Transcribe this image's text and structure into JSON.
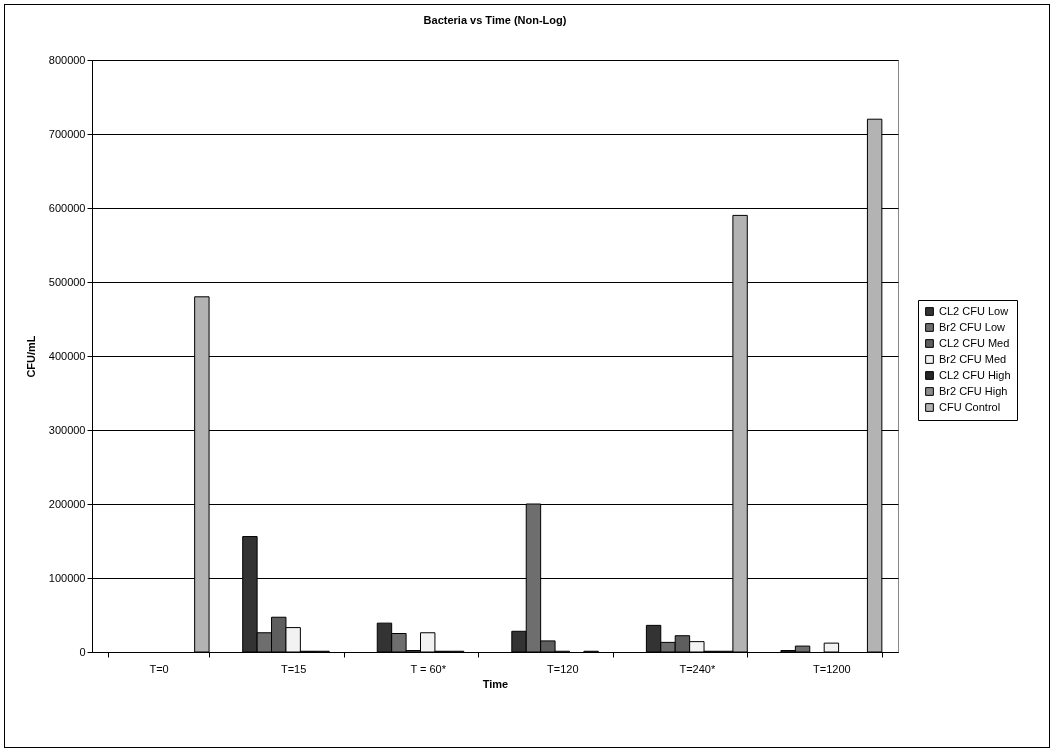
{
  "chart_data": {
    "type": "bar",
    "title": "Bacteria vs Time (Non-Log)",
    "xlabel": "Time",
    "ylabel": "CFU/mL",
    "categories": [
      "T=0",
      "T=15",
      "T = 60*",
      "T=120",
      "T=240*",
      "T=1200"
    ],
    "ylim": [
      0,
      800000
    ],
    "yticks": [
      0,
      100000,
      200000,
      300000,
      400000,
      500000,
      600000,
      700000,
      800000
    ],
    "grid": "y",
    "legend": "right",
    "series": [
      {
        "name": "CL2 CFU Low",
        "color": "#333333",
        "values": [
          null,
          156000,
          39000,
          28000,
          36000,
          2000
        ]
      },
      {
        "name": "Br2 CFU Low",
        "color": "#6e6e6e",
        "values": [
          null,
          26000,
          25000,
          200000,
          13000,
          8000
        ]
      },
      {
        "name": "CL2 CFU Med",
        "color": "#5e5e5e",
        "values": [
          null,
          47000,
          2000,
          15000,
          22000,
          null
        ]
      },
      {
        "name": "Br2 CFU Med",
        "color": "#f2f2f2",
        "values": [
          null,
          33000,
          26000,
          1000,
          14000,
          12000
        ]
      },
      {
        "name": "CL2 CFU High",
        "color": "#262626",
        "values": [
          null,
          1000,
          1000,
          null,
          1000,
          null
        ]
      },
      {
        "name": "Br2 CFU High",
        "color": "#8c8c8c",
        "values": [
          null,
          1000,
          1000,
          1000,
          1000,
          null
        ]
      },
      {
        "name": "CFU Control",
        "color": "#b3b3b3",
        "values": [
          480000,
          null,
          null,
          null,
          590000,
          720000
        ]
      }
    ]
  }
}
